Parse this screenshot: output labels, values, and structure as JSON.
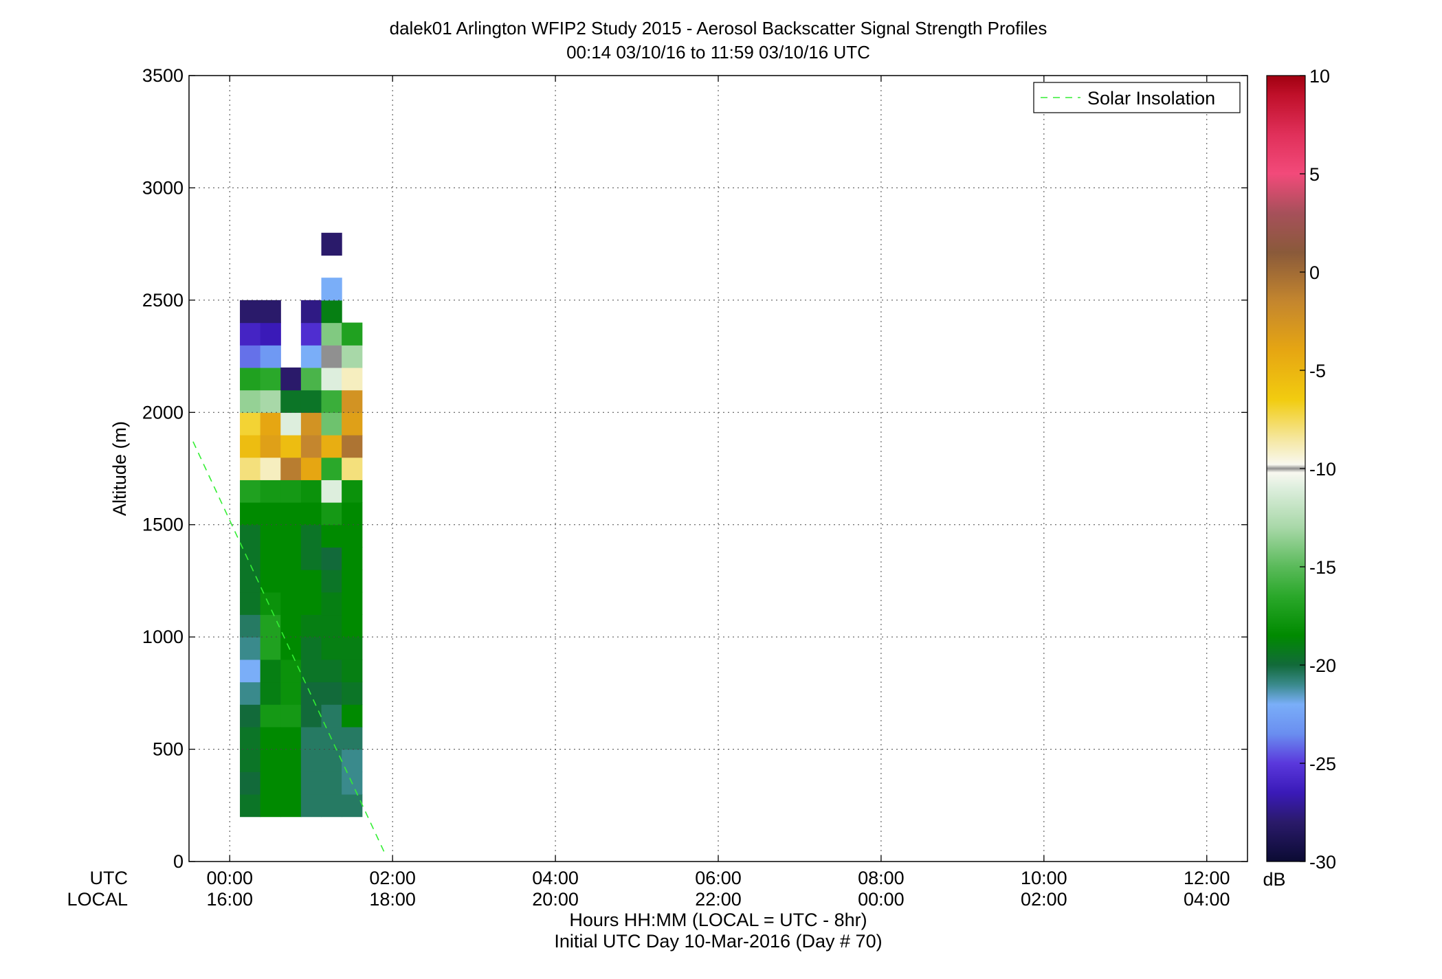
{
  "chart_data": {
    "type": "heatmap",
    "title_line1": "dalek01 Arlington WFIP2 Study 2015 - Aerosol Backscatter Signal Strength Profiles",
    "title_line2": "00:14 03/10/16 to 11:59 03/10/16  UTC",
    "ylabel": "Altitude (m)",
    "xlabel_line1": "Hours HH:MM  (LOCAL = UTC - 8hr)",
    "xlabel_line2": "Initial UTC Day 10-Mar-2016 (Day # 70)",
    "x_row_labels": [
      "UTC",
      "LOCAL"
    ],
    "x_ticks_utc": [
      "00:00",
      "02:00",
      "04:00",
      "06:00",
      "08:00",
      "10:00",
      "12:00"
    ],
    "x_ticks_local": [
      "16:00",
      "18:00",
      "20:00",
      "22:00",
      "00:00",
      "02:00",
      "04:00"
    ],
    "x_tick_hours": [
      0,
      2,
      4,
      6,
      8,
      10,
      12
    ],
    "xlim_hours": [
      -0.5,
      12.5
    ],
    "y_ticks": [
      0,
      500,
      1000,
      1500,
      2000,
      2500,
      3000,
      3500
    ],
    "ylim": [
      0,
      3500
    ],
    "grid": true,
    "legend": {
      "entries": [
        "Solar Insolation"
      ],
      "location": "top-right",
      "line_color": "#33ee33"
    },
    "solar_insolation_line": {
      "x_hours": [
        -0.45,
        1.9
      ],
      "y": [
        1870,
        40
      ]
    },
    "colorbar": {
      "label": "dB",
      "range": [
        -30,
        10
      ],
      "ticks": [
        10,
        5,
        0,
        -5,
        -10,
        -15,
        -20,
        -25,
        -30
      ],
      "gradient_stops": [
        {
          "v": -30,
          "color": "#0b0b33"
        },
        {
          "v": -28,
          "color": "#2a1a6a"
        },
        {
          "v": -26.5,
          "color": "#3a1ab8"
        },
        {
          "v": -25,
          "color": "#5a38dc"
        },
        {
          "v": -23.5,
          "color": "#6a8ef0"
        },
        {
          "v": -22,
          "color": "#7aaef8"
        },
        {
          "v": -21,
          "color": "#3a8a8c"
        },
        {
          "v": -20,
          "color": "#126a3a"
        },
        {
          "v": -18.5,
          "color": "#008a00"
        },
        {
          "v": -16.5,
          "color": "#2aa82a"
        },
        {
          "v": -15,
          "color": "#5aba5a"
        },
        {
          "v": -13,
          "color": "#a8d8a8"
        },
        {
          "v": -11,
          "color": "#ddeedd"
        },
        {
          "v": -10.2,
          "color": "#f8f8f0"
        },
        {
          "v": -10,
          "color": "#909090"
        },
        {
          "v": -9.8,
          "color": "#f8f8f0"
        },
        {
          "v": -8.5,
          "color": "#f5e7a0"
        },
        {
          "v": -6.5,
          "color": "#f2cc10"
        },
        {
          "v": -4,
          "color": "#e6a612"
        },
        {
          "v": -1.5,
          "color": "#c4862e"
        },
        {
          "v": 1,
          "color": "#8a5a3a"
        },
        {
          "v": 3,
          "color": "#a6505a"
        },
        {
          "v": 5,
          "color": "#f24a7a"
        },
        {
          "v": 7,
          "color": "#e0305a"
        },
        {
          "v": 9,
          "color": "#c0102a"
        },
        {
          "v": 10,
          "color": "#a00010"
        }
      ]
    },
    "grid_spec": {
      "t0_hours": 0.25,
      "dt_hours": 0.25,
      "z0_m": 200,
      "dz_m": 100,
      "n_levels": 33,
      "columns_note": "each column lists dB values from 200 m upward; null = no data"
    },
    "columns": [
      [
        -19.5,
        -20,
        -19.5,
        -19.5,
        -20,
        -21,
        -22,
        -21,
        -20.5,
        -19.5,
        -19.5,
        -19.5,
        -19.5,
        -18.5,
        -17,
        -8,
        -5.5,
        -7,
        -13.5,
        -17,
        -24,
        -26,
        -28
      ],
      [
        -18.5,
        -18.5,
        -18.5,
        -18.5,
        -17.5,
        -19,
        -19,
        -17,
        -17,
        -18,
        -18.5,
        -18.5,
        -18.5,
        -18.5,
        -17.5,
        -9,
        -3.5,
        -4,
        -13,
        -16.5,
        -23,
        -26.5,
        -28
      ],
      [
        -18.5,
        -18.5,
        -18.5,
        -18.5,
        -17.5,
        -18,
        -18,
        -18.5,
        -18.5,
        -18.5,
        -18.5,
        -18.5,
        -18.5,
        -18.5,
        -17.5,
        -1,
        -5.5,
        -11,
        -19.5,
        -28
      ],
      [
        -20.5,
        -20.5,
        -20.5,
        -20.5,
        -20,
        -20,
        -19.5,
        -19.5,
        -19,
        -18.5,
        -18.5,
        -19.5,
        -19.5,
        -18.5,
        -18,
        -4,
        -1.5,
        -2.5,
        -19.5,
        -15.5,
        -22,
        -25.5,
        -27.5
      ],
      [
        -20.5,
        -20.5,
        -20.5,
        -20.5,
        -20.5,
        -20,
        -19.5,
        -19,
        -19,
        -19,
        -19.5,
        -20,
        -18.5,
        -17.5,
        -11,
        -16.5,
        -4.5,
        -14.5,
        -16,
        -11,
        -10,
        -14,
        -19,
        -22,
        null,
        -28
      ],
      [
        -20.5,
        -21,
        -21,
        -20.5,
        -18.5,
        -19.5,
        -19,
        -19,
        -18.5,
        -18.5,
        -18.5,
        -18.5,
        -18.5,
        -18.5,
        -18,
        -8,
        -0.5,
        -3.5,
        -2.5,
        -9,
        -13,
        -17
      ]
    ]
  }
}
